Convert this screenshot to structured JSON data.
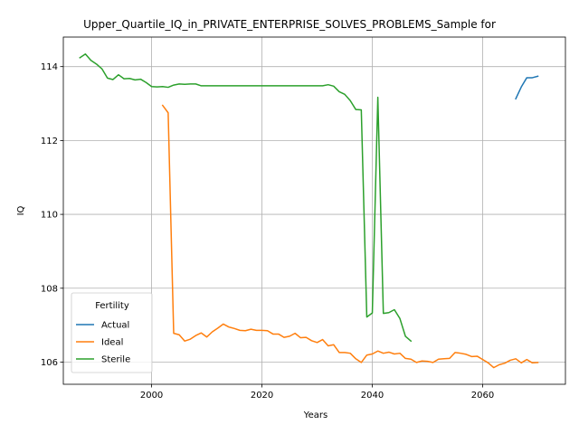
{
  "chart_data": {
    "type": "line",
    "title": "Upper_Quartile_IQ_in_PRIVATE_ENTERPRISE_SOLVES_PROBLEMS_Sample for",
    "xlabel": "Years",
    "ylabel": "IQ",
    "xlim": [
      1984,
      2075
    ],
    "ylim": [
      105.4,
      114.8
    ],
    "xticks": [
      2000,
      2020,
      2040,
      2060
    ],
    "yticks": [
      106,
      108,
      110,
      112,
      114
    ],
    "grid": true,
    "legend": {
      "title": "Fertility",
      "position": "lower-left"
    },
    "series": [
      {
        "name": "Actual",
        "color": "#1f77b4",
        "x": [
          2066,
          2067,
          2068,
          2069,
          2070
        ],
        "y": [
          113.13,
          113.45,
          113.7,
          113.7,
          113.74
        ]
      },
      {
        "name": "Ideal",
        "color": "#ff7f0e",
        "x": [
          2002,
          2003,
          2004,
          2005,
          2006,
          2007,
          2008,
          2009,
          2010,
          2011,
          2012,
          2013,
          2014,
          2015,
          2016,
          2017,
          2018,
          2019,
          2020,
          2021,
          2022,
          2023,
          2024,
          2025,
          2026,
          2027,
          2028,
          2029,
          2030,
          2031,
          2032,
          2033,
          2034,
          2035,
          2036,
          2037,
          2038,
          2039,
          2040,
          2041,
          2042,
          2043,
          2044,
          2045,
          2046,
          2047,
          2048,
          2049,
          2050,
          2051,
          2052,
          2053,
          2054,
          2055,
          2056,
          2057,
          2058,
          2059,
          2060,
          2061,
          2062,
          2063,
          2064,
          2065,
          2066,
          2067,
          2068,
          2069,
          2070
        ],
        "y": [
          112.95,
          112.75,
          106.78,
          106.74,
          106.57,
          106.62,
          106.72,
          106.79,
          106.68,
          106.82,
          106.92,
          107.03,
          106.95,
          106.91,
          106.86,
          106.85,
          106.89,
          106.86,
          106.86,
          106.85,
          106.76,
          106.76,
          106.67,
          106.7,
          106.78,
          106.66,
          106.67,
          106.58,
          106.53,
          106.61,
          106.44,
          106.47,
          106.26,
          106.26,
          106.24,
          106.09,
          105.99,
          106.19,
          106.22,
          106.3,
          106.24,
          106.27,
          106.22,
          106.24,
          106.1,
          106.08,
          105.99,
          106.03,
          106.02,
          105.99,
          106.08,
          106.09,
          106.1,
          106.26,
          106.24,
          106.21,
          106.15,
          106.16,
          106.07,
          105.98,
          105.85,
          105.93,
          105.97,
          106.05,
          106.09,
          105.98,
          106.07,
          105.98,
          105.99
        ]
      },
      {
        "name": "Sterile",
        "color": "#2ca02c",
        "x": [
          1987,
          1988,
          1989,
          1990,
          1991,
          1992,
          1993,
          1994,
          1995,
          1996,
          1997,
          1998,
          1999,
          2000,
          2001,
          2002,
          2003,
          2004,
          2005,
          2006,
          2007,
          2008,
          2009,
          2010,
          2011,
          2012,
          2013,
          2014,
          2015,
          2016,
          2017,
          2018,
          2019,
          2020,
          2021,
          2022,
          2023,
          2024,
          2025,
          2026,
          2027,
          2028,
          2029,
          2030,
          2031,
          2032,
          2033,
          2034,
          2035,
          2036,
          2037,
          2038,
          2039,
          2040,
          2041,
          2042,
          2043,
          2044,
          2045,
          2046,
          2047
        ],
        "y": [
          114.24,
          114.34,
          114.17,
          114.07,
          113.94,
          113.69,
          113.65,
          113.78,
          113.67,
          113.68,
          113.64,
          113.66,
          113.57,
          113.46,
          113.45,
          113.46,
          113.44,
          113.5,
          113.53,
          113.52,
          113.53,
          113.53,
          113.48,
          113.48,
          113.48,
          113.48,
          113.48,
          113.48,
          113.48,
          113.48,
          113.48,
          113.48,
          113.48,
          113.48,
          113.48,
          113.48,
          113.48,
          113.48,
          113.48,
          113.48,
          113.48,
          113.48,
          113.48,
          113.48,
          113.48,
          113.51,
          113.47,
          113.32,
          113.25,
          113.08,
          112.84,
          112.83,
          107.22,
          107.33,
          113.17,
          107.32,
          107.34,
          107.42,
          107.18,
          106.7,
          106.57
        ]
      }
    ]
  }
}
